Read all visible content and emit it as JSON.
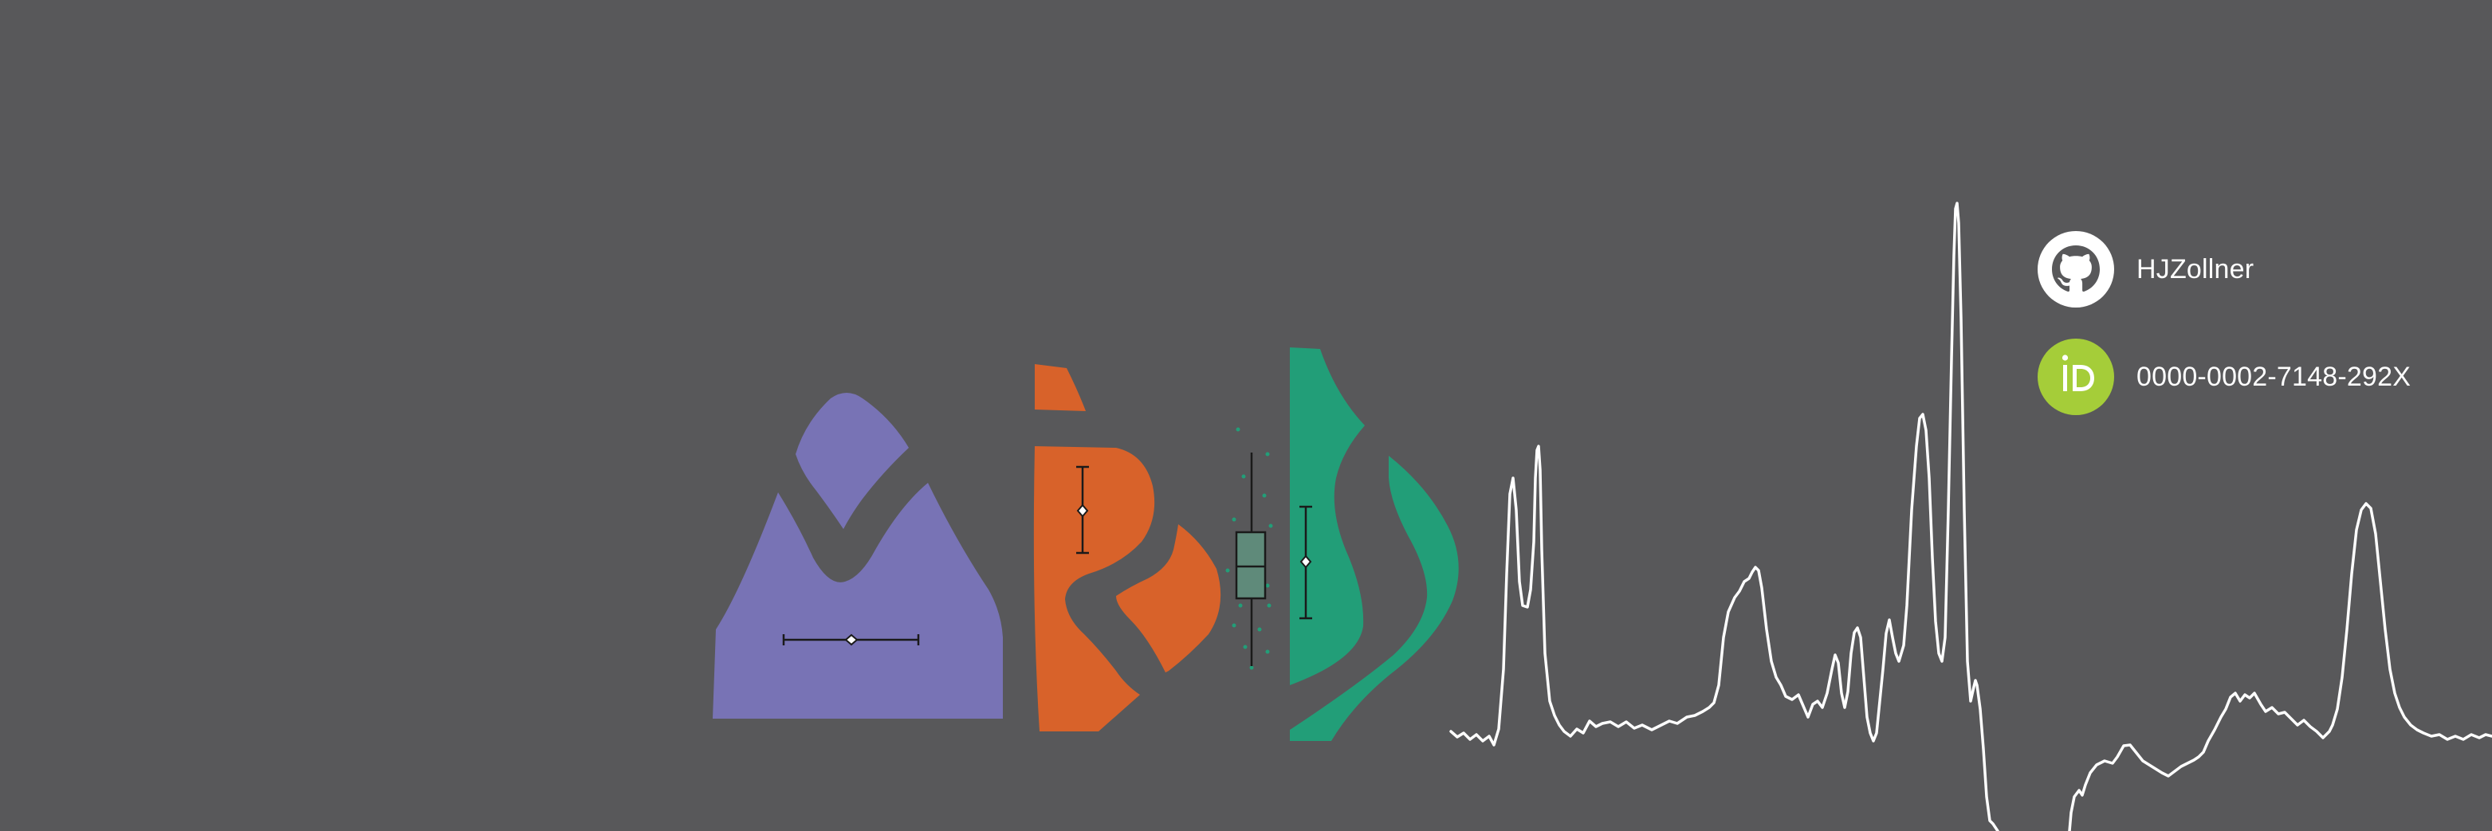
{
  "profile": {
    "github_username": "HJZollner",
    "orcid_id": "0000-0002-7148-292X"
  },
  "icons": {
    "github": "github-octocat-icon",
    "orcid": "orcid-id-icon"
  },
  "colors": {
    "background": "#58585a",
    "purple": "#7873b5",
    "orange": "#d8622a",
    "green": "#229e78",
    "boxplot_fill": "#5f8a7a",
    "orcid_green": "#a5cd39",
    "spectrum_line": "#ffffff"
  }
}
